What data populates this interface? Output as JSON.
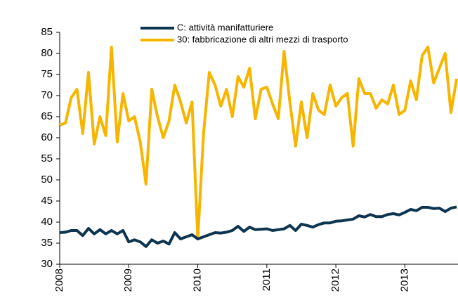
{
  "chart_data": {
    "type": "line",
    "categories": [
      "2008",
      null,
      null,
      null,
      null,
      null,
      null,
      null,
      null,
      null,
      null,
      null,
      "2009",
      null,
      null,
      null,
      null,
      null,
      null,
      null,
      null,
      null,
      null,
      null,
      "2010",
      null,
      null,
      null,
      null,
      null,
      null,
      null,
      null,
      null,
      null,
      null,
      "2011",
      null,
      null,
      null,
      null,
      null,
      null,
      null,
      null,
      null,
      null,
      null,
      "2012",
      null,
      null,
      null,
      null,
      null,
      null,
      null,
      null,
      null,
      null,
      null,
      "2013",
      null,
      null,
      null,
      null,
      null,
      null,
      null,
      null,
      null
    ],
    "series": [
      {
        "name": "C: attività manifatturiere",
        "color": "#0d3550",
        "values": [
          37.5,
          37.6,
          38,
          38,
          36.8,
          38.5,
          37.2,
          38.2,
          37.2,
          38,
          37.2,
          38,
          35.3,
          35.8,
          35.3,
          34.2,
          35.8,
          35,
          35.5,
          34.8,
          37.5,
          36,
          36.5,
          37,
          36,
          36.5,
          37,
          37.5,
          37.4,
          37.6,
          38,
          39,
          37.8,
          38.8,
          38.2,
          38.3,
          38.4,
          38,
          38.2,
          38.4,
          39.2,
          38,
          39.5,
          39.2,
          38.8,
          39.4,
          39.8,
          39.8,
          40.2,
          40.3,
          40.5,
          40.7,
          41.5,
          41.2,
          41.8,
          41.3,
          41.3,
          41.8,
          42,
          41.7,
          42.3,
          43,
          42.7,
          43.5,
          43.5,
          43.2,
          43.3,
          42.5,
          43.3,
          43.6
        ]
      },
      {
        "name": "30: fabbricazione di altri mezzi di trasporto",
        "color": "#f7b500",
        "values": [
          63,
          63.5,
          69.5,
          71.5,
          61,
          75.5,
          58.5,
          65,
          60.5,
          81.5,
          59,
          70.5,
          64,
          65,
          59,
          49,
          71.5,
          65,
          60,
          64,
          72.5,
          68.5,
          63.5,
          68.5,
          36,
          61,
          75.5,
          72.5,
          67.5,
          71.5,
          65,
          74.5,
          72,
          76.5,
          64.5,
          71.5,
          72,
          68,
          64.5,
          80.5,
          68.5,
          58,
          68.5,
          60,
          70.5,
          66.5,
          65.5,
          72.5,
          67.5,
          69.5,
          70.5,
          58,
          74,
          70.5,
          70.5,
          67,
          69,
          68,
          72.5,
          65.5,
          66.5,
          73.5,
          69,
          79.5,
          81.5,
          73,
          76.5,
          80,
          66,
          74
        ]
      }
    ],
    "ylim": [
      30,
      85
    ],
    "yticks": [
      30,
      35,
      40,
      45,
      50,
      55,
      60,
      65,
      70,
      75,
      80,
      85
    ],
    "grid": false
  }
}
